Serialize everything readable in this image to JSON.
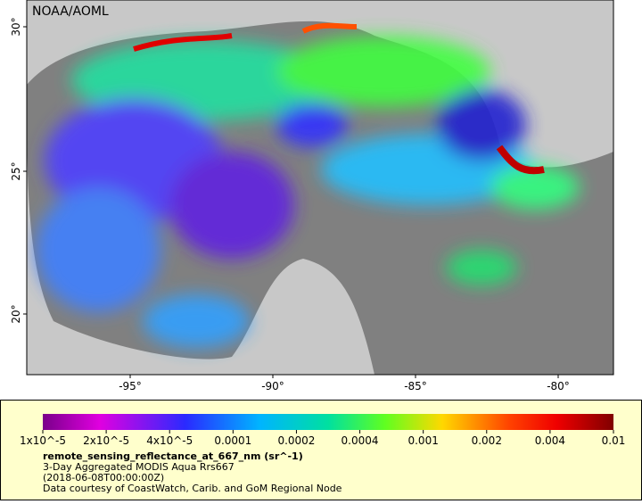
{
  "map": {
    "credit": "NOAA/AOML",
    "lat_ticks": [
      "30°",
      "25°",
      "20°"
    ],
    "lon_ticks": [
      "-95°",
      "-90°",
      "-85°",
      "-80°"
    ]
  },
  "colorbar": {
    "labels": [
      "1x10^-5",
      "2x10^-5",
      "4x10^-5",
      "0.0001",
      "0.0002",
      "0.0004",
      "0.001",
      "0.002",
      "0.004",
      "0.01"
    ]
  },
  "caption": {
    "variable": "remote_sensing_reflectance_at_667_nm (sr^-1)",
    "lines": [
      "3-Day Aggregated MODIS Aqua Rrs667",
      "(2018-06-08T00:00:00Z)",
      "Data courtesy of CoastWatch, Carib. and GoM Regional Node"
    ]
  }
}
